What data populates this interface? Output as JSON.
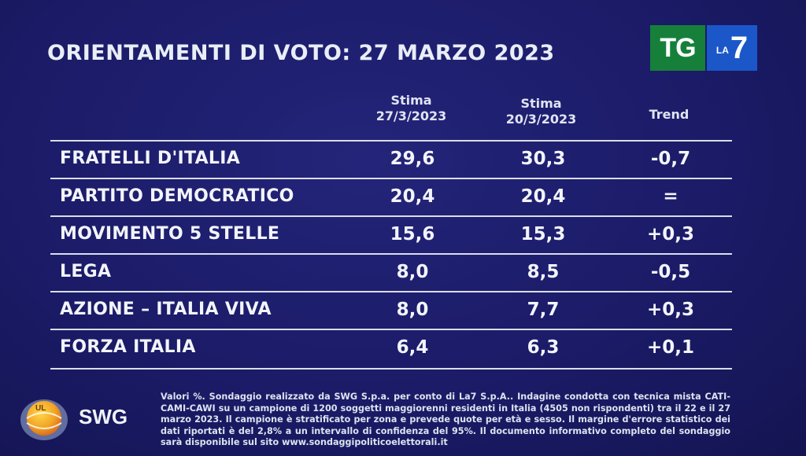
{
  "title": "ORIENTAMENTI DI VOTO: 27 MARZO 2023",
  "logo": {
    "tg": "TG",
    "la": "LA",
    "seven": "7"
  },
  "columns": {
    "c1_line1": "Stima",
    "c1_line2": "27/3/2023",
    "c2_line1": "Stima",
    "c2_line2": "20/3/2023",
    "c3": "Trend"
  },
  "rows": [
    {
      "party": "FRATELLI D'ITALIA",
      "stima_27": "29,6",
      "stima_20": "30,3",
      "trend": "-0,7"
    },
    {
      "party": "PARTITO DEMOCRATICO",
      "stima_27": "20,4",
      "stima_20": "20,4",
      "trend": "="
    },
    {
      "party": "MOVIMENTO 5 STELLE",
      "stima_27": "15,6",
      "stima_20": "15,3",
      "trend": "+0,3"
    },
    {
      "party": "LEGA",
      "stima_27": "8,0",
      "stima_20": "8,5",
      "trend": "-0,5"
    },
    {
      "party": "AZIONE – ITALIA VIVA",
      "stima_27": "8,0",
      "stima_20": "7,7",
      "trend": "+0,3"
    },
    {
      "party": "FORZA ITALIA",
      "stima_27": "6,4",
      "stima_20": "6,3",
      "trend": "+0,1"
    }
  ],
  "source_logo": {
    "text": "SWG",
    "emblem_text": "UL",
    "icon": "swg-globe-icon"
  },
  "footer": "Valori %. Sondaggio realizzato da SWG S.p.a. per conto di La7 S.p.A.. Indagine condotta con tecnica mista CATI-CAMI-CAWI su un campione di 1200 soggetti maggiorenni residenti in Italia (4505 non rispondenti) tra il 22 e il 27 marzo 2023. Il campione è stratificato per zona e prevede quote per età e sesso. Il margine d'errore statistico dei dati riportati è del 2,8% a un intervallo di confidenza del 95%. Il documento informativo completo del sondaggio sarà disponibile sul sito www.sondaggipoliticoelettorali.it",
  "colors": {
    "background": "#1b1b68",
    "tg_green": "#16803a",
    "la7_blue": "#1b57c8",
    "text": "#f2f4fa"
  }
}
